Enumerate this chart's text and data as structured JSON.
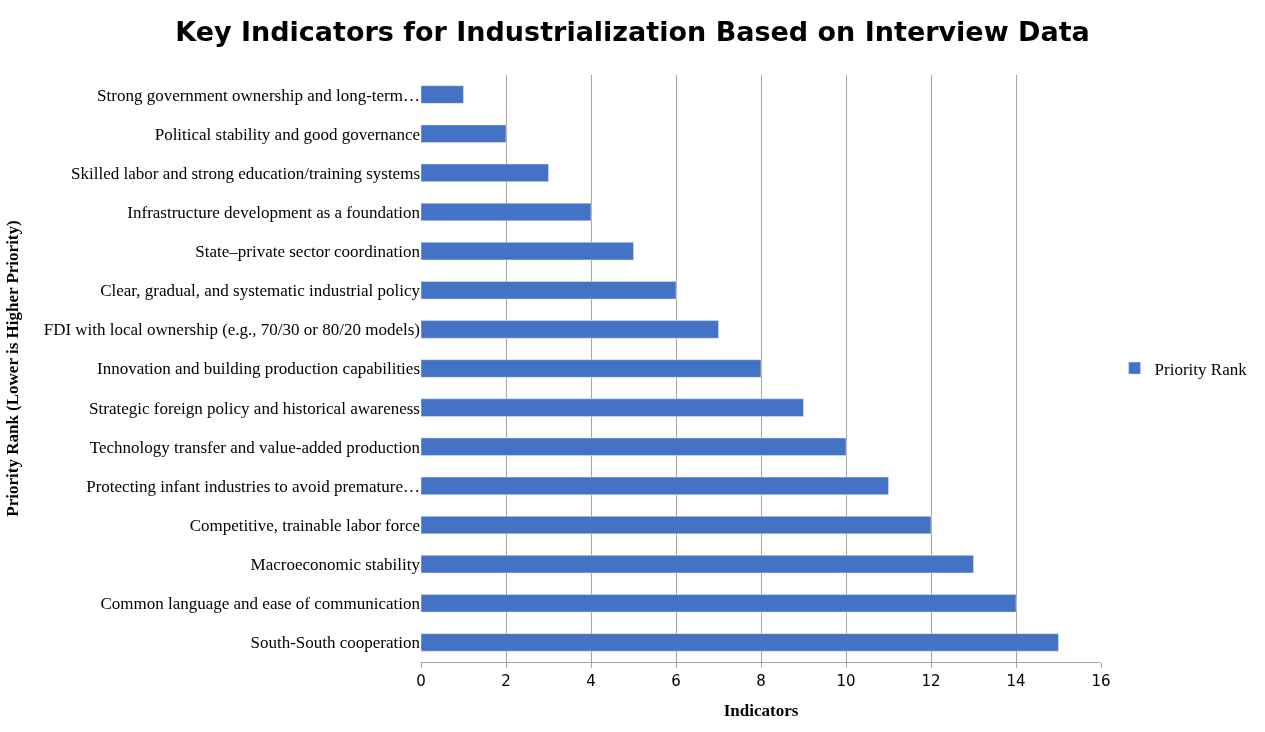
{
  "chart_data": {
    "type": "bar",
    "orientation": "horizontal",
    "title": "Key Indicators for Industrialization Based on Interview Data",
    "xlabel": "Indicators",
    "ylabel": "Priority Rank (Lower is Higher Priority)",
    "categories": [
      "Strong government ownership and long-term…",
      "Political stability and good governance",
      "Skilled labor and strong education/training systems",
      "Infrastructure development as a foundation",
      "State–private sector coordination",
      "Clear, gradual, and systematic industrial policy",
      "FDI with local ownership (e.g., 70/30 or 80/20 models)",
      "Innovation and building production capabilities",
      "Strategic foreign policy and historical awareness",
      "Technology transfer and value-added production",
      "Protecting infant industries to avoid premature…",
      "Competitive, trainable labor force",
      "Macroeconomic stability",
      "Common language and ease of communication",
      "South-South cooperation"
    ],
    "series": [
      {
        "name": "Priority Rank",
        "color": "#4472c4",
        "values": [
          1,
          2,
          3,
          4,
          5,
          6,
          7,
          8,
          9,
          10,
          11,
          12,
          13,
          14,
          15
        ]
      }
    ],
    "xlim": [
      0,
      16
    ],
    "xticks": [
      0,
      2,
      4,
      6,
      8,
      10,
      12,
      14,
      16
    ],
    "grid": "x",
    "legend": "right"
  }
}
